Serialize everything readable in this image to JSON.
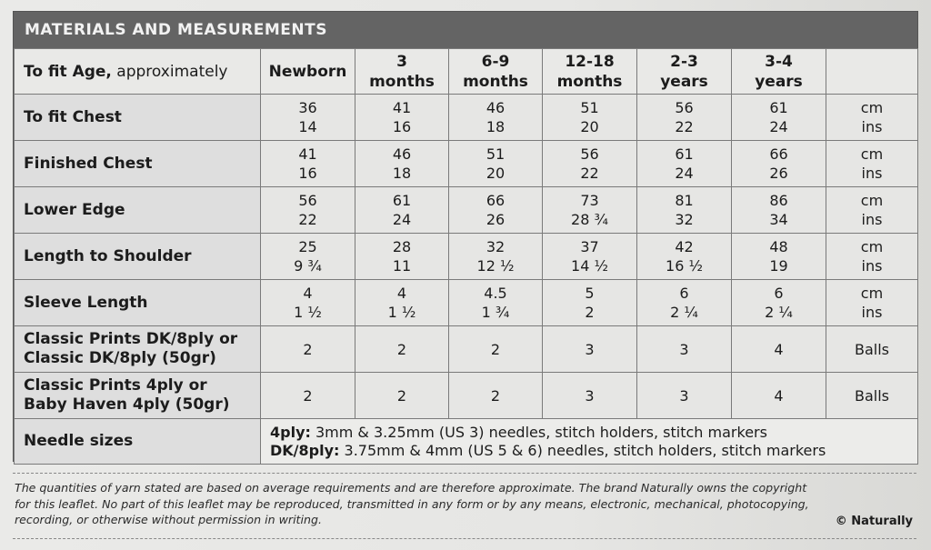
{
  "title": "MATERIALS AND MEASUREMENTS",
  "header": {
    "label_bold": "To fit Age,",
    "label_normal": " approximately",
    "sizes": [
      {
        "line1": "Newborn",
        "line2": ""
      },
      {
        "line1": "3",
        "line2": "months"
      },
      {
        "line1": "6-9",
        "line2": "months"
      },
      {
        "line1": "12-18",
        "line2": "months"
      },
      {
        "line1": "2-3",
        "line2": "years"
      },
      {
        "line1": "3-4",
        "line2": "years"
      }
    ]
  },
  "rows": [
    {
      "label": "To fit Chest",
      "values": [
        [
          "36",
          "14"
        ],
        [
          "41",
          "16"
        ],
        [
          "46",
          "18"
        ],
        [
          "51",
          "20"
        ],
        [
          "56",
          "22"
        ],
        [
          "61",
          "24"
        ]
      ],
      "unit": [
        "cm",
        "ins"
      ]
    },
    {
      "label": "Finished Chest",
      "values": [
        [
          "41",
          "16"
        ],
        [
          "46",
          "18"
        ],
        [
          "51",
          "20"
        ],
        [
          "56",
          "22"
        ],
        [
          "61",
          "24"
        ],
        [
          "66",
          "26"
        ]
      ],
      "unit": [
        "cm",
        "ins"
      ]
    },
    {
      "label": "Lower Edge",
      "values": [
        [
          "56",
          "22"
        ],
        [
          "61",
          "24"
        ],
        [
          "66",
          "26"
        ],
        [
          "73",
          "28 ¾"
        ],
        [
          "81",
          "32"
        ],
        [
          "86",
          "34"
        ]
      ],
      "unit": [
        "cm",
        "ins"
      ]
    },
    {
      "label": "Length to Shoulder",
      "values": [
        [
          "25",
          "9 ¾"
        ],
        [
          "28",
          "11"
        ],
        [
          "32",
          "12 ½"
        ],
        [
          "37",
          "14 ½"
        ],
        [
          "42",
          "16 ½"
        ],
        [
          "48",
          "19"
        ]
      ],
      "unit": [
        "cm",
        "ins"
      ]
    },
    {
      "label": "Sleeve Length",
      "values": [
        [
          "4",
          "1 ½"
        ],
        [
          "4",
          "1 ½"
        ],
        [
          "4.5",
          "1 ¾"
        ],
        [
          "5",
          "2"
        ],
        [
          "6",
          "2 ¼"
        ],
        [
          "6",
          "2 ¼"
        ]
      ],
      "unit": [
        "cm",
        "ins"
      ]
    }
  ],
  "yarn_rows": [
    {
      "label1": "Classic Prints DK/8ply or",
      "label2": "Classic DK/8ply (50gr)",
      "values": [
        "2",
        "2",
        "2",
        "3",
        "3",
        "4"
      ],
      "unit": "Balls"
    },
    {
      "label1": "Classic Prints 4ply or",
      "label2": "Baby Haven 4ply (50gr)",
      "values": [
        "2",
        "2",
        "2",
        "3",
        "3",
        "4"
      ],
      "unit": "Balls"
    }
  ],
  "needles": {
    "label": "Needle sizes",
    "line1_bold": "4ply:",
    "line1_text": " 3mm & 3.25mm (US 3) needles, stitch holders, stitch markers",
    "line2_bold": "DK/8ply:",
    "line2_text": " 3.75mm & 4mm (US 5 & 6) needles, stitch holders, stitch markers"
  },
  "footer": {
    "line1": "The quantities of yarn stated are based on average requirements and are therefore approximate. The brand Naturally owns the copyright",
    "line2": "for this leaflet. No part of this leaflet may be reproduced, transmitted in any form or by any means, electronic, mechanical, photocopying,",
    "line3": "recording, or otherwise without permission in writing.",
    "copyright": "© Naturally"
  }
}
